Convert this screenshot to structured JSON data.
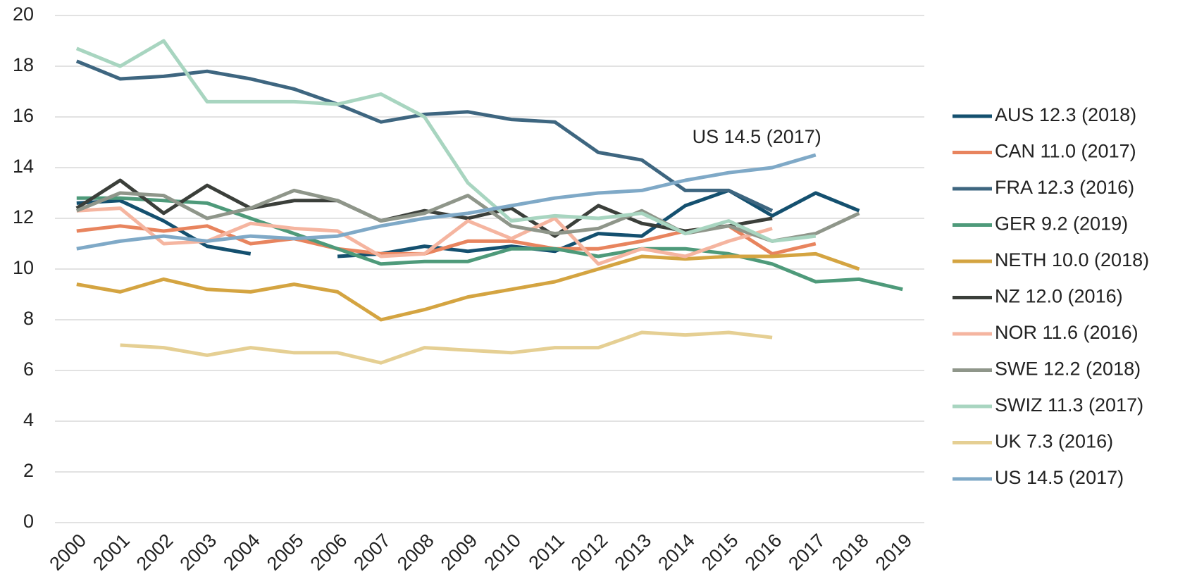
{
  "chart_data": {
    "type": "line",
    "categories": [
      "2000",
      "2001",
      "2002",
      "2003",
      "2004",
      "2005",
      "2006",
      "2007",
      "2008",
      "2009",
      "2010",
      "2011",
      "2012",
      "2013",
      "2014",
      "2015",
      "2016",
      "2017",
      "2018",
      "2019"
    ],
    "ylim": [
      0,
      20
    ],
    "yticks": [
      0,
      2,
      4,
      6,
      8,
      10,
      12,
      14,
      16,
      18,
      20
    ],
    "grid": true,
    "legend": "right",
    "annotation": "US 14.5 (2017)",
    "series": [
      {
        "name": "AUS 12.3 (2018)",
        "color": "#14506f",
        "values": [
          12.6,
          12.7,
          11.9,
          10.9,
          10.6,
          null,
          10.5,
          10.6,
          10.9,
          10.7,
          10.9,
          10.7,
          11.4,
          11.3,
          12.5,
          13.1,
          12.1,
          13.0,
          12.3,
          null
        ]
      },
      {
        "name": "CAN 11.0 (2017)",
        "color": "#e8845e",
        "values": [
          11.5,
          11.7,
          11.5,
          11.7,
          11.0,
          11.2,
          10.8,
          10.6,
          10.6,
          11.1,
          11.1,
          10.8,
          10.8,
          11.1,
          11.5,
          11.7,
          10.6,
          11.0,
          null,
          null
        ]
      },
      {
        "name": "FRA 12.3 (2016)",
        "color": "#3e6680",
        "values": [
          18.2,
          17.5,
          17.6,
          17.8,
          17.5,
          17.1,
          16.5,
          15.8,
          16.1,
          16.2,
          15.9,
          15.8,
          14.6,
          14.3,
          13.1,
          13.1,
          12.3,
          null,
          null,
          null
        ]
      },
      {
        "name": "GER 9.2 (2019)",
        "color": "#4e9a7a",
        "values": [
          12.8,
          12.8,
          12.7,
          12.6,
          12.0,
          11.4,
          10.8,
          10.2,
          10.3,
          10.3,
          10.8,
          10.8,
          10.5,
          10.8,
          10.8,
          10.6,
          10.2,
          9.5,
          9.6,
          9.2
        ]
      },
      {
        "name": "NETH 10.0 (2018)",
        "color": "#d4a441",
        "values": [
          9.4,
          9.1,
          9.6,
          9.2,
          9.1,
          9.4,
          9.1,
          8.0,
          8.4,
          8.9,
          9.2,
          9.5,
          10.0,
          10.5,
          10.4,
          10.5,
          10.5,
          10.6,
          10.0,
          null
        ]
      },
      {
        "name": "NZ 12.0 (2016)",
        "color": "#3b3f3a",
        "values": [
          12.4,
          13.5,
          12.2,
          13.3,
          12.4,
          12.7,
          12.7,
          11.9,
          12.3,
          12.0,
          12.4,
          11.3,
          12.5,
          11.8,
          11.5,
          11.7,
          12.0,
          null,
          null,
          null
        ]
      },
      {
        "name": "NOR 11.6 (2016)",
        "color": "#f5b5a0",
        "values": [
          12.3,
          12.4,
          11.0,
          11.1,
          11.8,
          11.6,
          11.5,
          10.5,
          10.6,
          11.9,
          11.2,
          12.0,
          10.2,
          10.8,
          10.5,
          11.1,
          11.6,
          null,
          null,
          null
        ]
      },
      {
        "name": "SWE 12.2 (2018)",
        "color": "#8f968a",
        "values": [
          12.3,
          13.0,
          12.9,
          12.0,
          12.4,
          13.1,
          12.7,
          11.9,
          12.2,
          12.9,
          11.7,
          11.4,
          11.6,
          12.3,
          11.4,
          11.7,
          11.1,
          11.4,
          12.2,
          null
        ]
      },
      {
        "name": "SWIZ 11.3 (2017)",
        "color": "#a8d5c0",
        "values": [
          18.7,
          18.0,
          19.0,
          16.6,
          16.6,
          16.6,
          16.5,
          16.9,
          16.0,
          13.4,
          11.9,
          12.1,
          12.0,
          12.2,
          11.4,
          11.9,
          11.1,
          11.3,
          null,
          null
        ]
      },
      {
        "name": "UK 7.3 (2016)",
        "color": "#e5cf93",
        "values": [
          null,
          7.0,
          6.9,
          6.6,
          6.9,
          6.7,
          6.7,
          6.3,
          6.9,
          6.8,
          6.7,
          6.9,
          6.9,
          7.5,
          7.4,
          7.5,
          7.3,
          null,
          null,
          null
        ]
      },
      {
        "name": "US 14.5 (2017)",
        "color": "#7fa9c7",
        "values": [
          10.8,
          11.1,
          11.3,
          11.1,
          11.3,
          11.2,
          11.3,
          11.7,
          12.0,
          12.2,
          12.5,
          12.8,
          13.0,
          13.1,
          13.5,
          13.8,
          14.0,
          14.5,
          null,
          null
        ]
      }
    ]
  }
}
